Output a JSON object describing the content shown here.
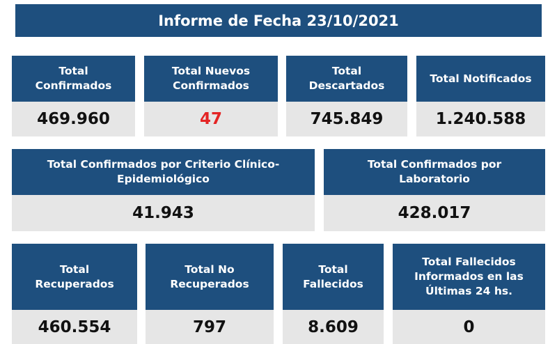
{
  "report": {
    "title": "Informe de Fecha 23/10/2021"
  },
  "accent_colors": {
    "header_blue": "#1e4f7e",
    "value_bg": "#e6e6e6",
    "highlight_red": "#e42424"
  },
  "row1": [
    {
      "label_lines": [
        "Total",
        "Confirmados"
      ],
      "value": "469.960"
    },
    {
      "label_lines": [
        "Total Nuevos",
        "Confirmados"
      ],
      "value": "47"
    },
    {
      "label_lines": [
        "Total",
        "Descartados"
      ],
      "value": "745.849"
    },
    {
      "label_lines": [
        "Total Notificados"
      ],
      "value": "1.240.588"
    }
  ],
  "row2": [
    {
      "label_lines": [
        "Total Confirmados por Criterio Clínico-",
        "Epidemiológico"
      ],
      "value": "41.943"
    },
    {
      "label_lines": [
        "Total Confirmados por",
        "Laboratorio"
      ],
      "value": "428.017"
    }
  ],
  "row3": [
    {
      "label_lines": [
        "Total",
        "Recuperados"
      ],
      "value": "460.554"
    },
    {
      "label_lines": [
        "Total No",
        "Recuperados"
      ],
      "value": "797"
    },
    {
      "label_lines": [
        "Total",
        "Fallecidos"
      ],
      "value": "8.609"
    },
    {
      "label_lines": [
        "Total Fallecidos",
        "Informados en las",
        "Últimas 24 hs."
      ],
      "value": "0"
    }
  ]
}
